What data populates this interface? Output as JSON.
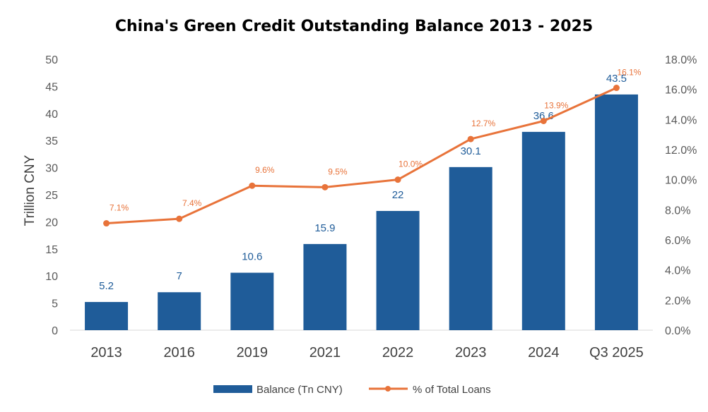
{
  "chart_data": {
    "type": "bar",
    "title": "China's Green Credit Outstanding Balance 2013 - 2025",
    "ylabel": "Trillion CNY",
    "ylim": [
      0,
      50
    ],
    "y_ticks": [
      "0",
      "5",
      "10",
      "15",
      "20",
      "25",
      "30",
      "35",
      "40",
      "45",
      "50"
    ],
    "y2lim": [
      0,
      18
    ],
    "y2_ticks": [
      "0.0%",
      "2.0%",
      "4.0%",
      "6.0%",
      "8.0%",
      "10.0%",
      "12.0%",
      "14.0%",
      "16.0%",
      "18.0%"
    ],
    "categories": [
      "2013",
      "2016",
      "2019",
      "2021",
      "2022",
      "2023",
      "2024",
      "Q3 2025"
    ],
    "series": [
      {
        "name": "Balance (Tn CNY)",
        "type": "bar",
        "axis": "left",
        "values": [
          5.2,
          7,
          10.6,
          15.9,
          22,
          30.1,
          36.6,
          43.5
        ],
        "labels": [
          "5.2",
          "7",
          "10.6",
          "15.9",
          "22",
          "30.1",
          "36.6",
          "43.5"
        ],
        "color": "#1F5C99"
      },
      {
        "name": "% of Total Loans",
        "type": "line",
        "axis": "right",
        "values": [
          7.1,
          7.4,
          9.6,
          9.5,
          10.0,
          12.7,
          13.9,
          16.1
        ],
        "labels": [
          "7.1%",
          "7.4%",
          "9.6%",
          "9.5%",
          "10.0%",
          "12.7%",
          "13.9%",
          "16.1%"
        ],
        "color": "#E8733A"
      }
    ],
    "grid": false,
    "legend_position": "bottom"
  }
}
